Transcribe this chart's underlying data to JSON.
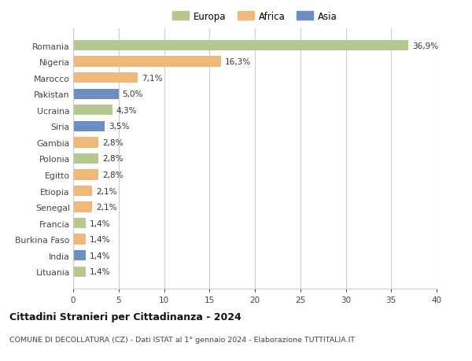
{
  "categories": [
    "Romania",
    "Nigeria",
    "Marocco",
    "Pakistan",
    "Ucraina",
    "Siria",
    "Gambia",
    "Polonia",
    "Egitto",
    "Etiopia",
    "Senegal",
    "Francia",
    "Burkina Faso",
    "India",
    "Lituania"
  ],
  "values": [
    36.9,
    16.3,
    7.1,
    5.0,
    4.3,
    3.5,
    2.8,
    2.8,
    2.8,
    2.1,
    2.1,
    1.4,
    1.4,
    1.4,
    1.4
  ],
  "labels": [
    "36,9%",
    "16,3%",
    "7,1%",
    "5,0%",
    "4,3%",
    "3,5%",
    "2,8%",
    "2,8%",
    "2,8%",
    "2,1%",
    "2,1%",
    "1,4%",
    "1,4%",
    "1,4%",
    "1,4%"
  ],
  "colors": [
    "#b5c98e",
    "#f0b97a",
    "#f0b97a",
    "#6b8fc2",
    "#b5c98e",
    "#6b8fc2",
    "#f0b97a",
    "#b5c98e",
    "#f0b97a",
    "#f0b97a",
    "#f0b97a",
    "#b5c98e",
    "#f0b97a",
    "#6b8fc2",
    "#b5c98e"
  ],
  "continent": [
    "Europa",
    "Africa",
    "Africa",
    "Asia",
    "Europa",
    "Asia",
    "Africa",
    "Europa",
    "Africa",
    "Africa",
    "Africa",
    "Europa",
    "Africa",
    "Asia",
    "Europa"
  ],
  "legend_labels": [
    "Europa",
    "Africa",
    "Asia"
  ],
  "legend_colors": [
    "#b5c98e",
    "#f0b97a",
    "#6b8fc2"
  ],
  "xlim": [
    0,
    40
  ],
  "xticks": [
    0,
    5,
    10,
    15,
    20,
    25,
    30,
    35,
    40
  ],
  "title": "Cittadini Stranieri per Cittadinanza - 2024",
  "subtitle": "COMUNE DI DECOLLATURA (CZ) - Dati ISTAT al 1° gennaio 2024 - Elaborazione TUTTITALIA.IT",
  "background_color": "#ffffff",
  "grid_color": "#cccccc",
  "bar_height": 0.65,
  "label_fontsize": 7.5,
  "ytick_fontsize": 7.8,
  "xtick_fontsize": 7.5
}
